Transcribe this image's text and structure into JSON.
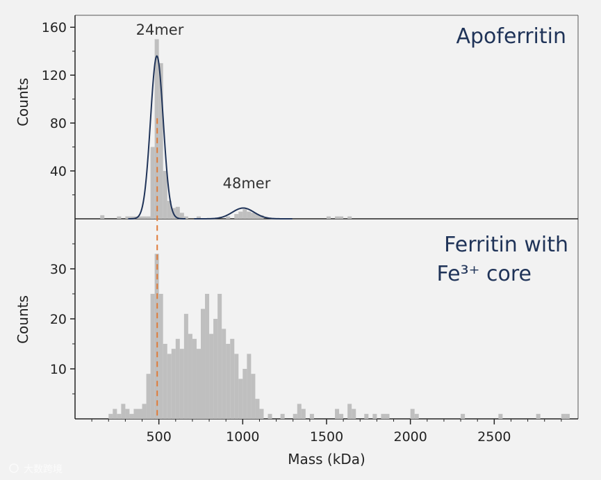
{
  "chart_data": [
    {
      "type": "bar",
      "panel": "top",
      "title": "Apoferritin",
      "ylabel": "Counts",
      "xlabel": "",
      "xlim": [
        0,
        3000
      ],
      "ylim": [
        0,
        170
      ],
      "bin_width": 25,
      "yticks": [
        "40",
        "80",
        "120",
        "160"
      ],
      "ytick_values": [
        40,
        80,
        120,
        160
      ],
      "annotations": [
        {
          "text": "24mer",
          "x": 500,
          "y": 158
        },
        {
          "text": "48mer",
          "x": 1000,
          "y": 28
        }
      ],
      "reference_line": {
        "x": 490,
        "style": "dashed",
        "color": "#e07b39"
      },
      "bins": [
        {
          "x": 150,
          "y": 3
        },
        {
          "x": 250,
          "y": 2
        },
        {
          "x": 300,
          "y": 2
        },
        {
          "x": 325,
          "y": 2
        },
        {
          "x": 350,
          "y": 2
        },
        {
          "x": 375,
          "y": 2
        },
        {
          "x": 400,
          "y": 2
        },
        {
          "x": 425,
          "y": 2
        },
        {
          "x": 450,
          "y": 60
        },
        {
          "x": 475,
          "y": 150
        },
        {
          "x": 500,
          "y": 130
        },
        {
          "x": 525,
          "y": 40
        },
        {
          "x": 550,
          "y": 15
        },
        {
          "x": 575,
          "y": 9
        },
        {
          "x": 600,
          "y": 10
        },
        {
          "x": 625,
          "y": 5
        },
        {
          "x": 650,
          "y": 2
        },
        {
          "x": 725,
          "y": 2
        },
        {
          "x": 900,
          "y": 2
        },
        {
          "x": 950,
          "y": 4
        },
        {
          "x": 975,
          "y": 6
        },
        {
          "x": 1000,
          "y": 8
        },
        {
          "x": 1025,
          "y": 6
        },
        {
          "x": 1050,
          "y": 5
        },
        {
          "x": 1075,
          "y": 4
        },
        {
          "x": 1100,
          "y": 3
        },
        {
          "x": 1500,
          "y": 2
        },
        {
          "x": 1550,
          "y": 2
        },
        {
          "x": 1575,
          "y": 2
        },
        {
          "x": 1625,
          "y": 2
        }
      ],
      "fit_curves": [
        {
          "mean": 488,
          "sd": 38,
          "amplitude": 136,
          "color": "#1f3358"
        },
        {
          "mean": 1003,
          "sd": 65,
          "amplitude": 9,
          "color": "#1f3358"
        }
      ]
    },
    {
      "type": "bar",
      "panel": "bottom",
      "title": "Ferritin with Fe³⁺ core",
      "title_lines": [
        "Ferritin with",
        "Fe³⁺ core"
      ],
      "ylabel": "Counts",
      "xlabel": "Mass (kDa)",
      "xlim": [
        0,
        3000
      ],
      "ylim": [
        0,
        40
      ],
      "bin_width": 25,
      "xticks": [
        "500",
        "1000",
        "1500",
        "2000",
        "2500"
      ],
      "xtick_values": [
        500,
        1000,
        1500,
        2000,
        2500
      ],
      "yticks": [
        "10",
        "20",
        "30"
      ],
      "ytick_values": [
        10,
        20,
        30
      ],
      "reference_line": {
        "x": 490,
        "style": "dashed",
        "color": "#e07b39"
      },
      "bins": [
        {
          "x": 200,
          "y": 1
        },
        {
          "x": 225,
          "y": 2
        },
        {
          "x": 250,
          "y": 1
        },
        {
          "x": 275,
          "y": 3
        },
        {
          "x": 300,
          "y": 2
        },
        {
          "x": 325,
          "y": 1
        },
        {
          "x": 350,
          "y": 2
        },
        {
          "x": 375,
          "y": 2
        },
        {
          "x": 400,
          "y": 3
        },
        {
          "x": 425,
          "y": 9
        },
        {
          "x": 450,
          "y": 25
        },
        {
          "x": 475,
          "y": 33
        },
        {
          "x": 500,
          "y": 25
        },
        {
          "x": 525,
          "y": 15
        },
        {
          "x": 550,
          "y": 13
        },
        {
          "x": 575,
          "y": 14
        },
        {
          "x": 600,
          "y": 16
        },
        {
          "x": 625,
          "y": 14
        },
        {
          "x": 650,
          "y": 21
        },
        {
          "x": 675,
          "y": 17
        },
        {
          "x": 700,
          "y": 16
        },
        {
          "x": 725,
          "y": 14
        },
        {
          "x": 750,
          "y": 22
        },
        {
          "x": 775,
          "y": 25
        },
        {
          "x": 800,
          "y": 17
        },
        {
          "x": 825,
          "y": 20
        },
        {
          "x": 850,
          "y": 25
        },
        {
          "x": 875,
          "y": 18
        },
        {
          "x": 900,
          "y": 15
        },
        {
          "x": 925,
          "y": 16
        },
        {
          "x": 950,
          "y": 13
        },
        {
          "x": 975,
          "y": 8
        },
        {
          "x": 1000,
          "y": 10
        },
        {
          "x": 1025,
          "y": 13
        },
        {
          "x": 1050,
          "y": 9
        },
        {
          "x": 1075,
          "y": 4
        },
        {
          "x": 1100,
          "y": 2
        },
        {
          "x": 1150,
          "y": 1
        },
        {
          "x": 1225,
          "y": 1
        },
        {
          "x": 1300,
          "y": 1
        },
        {
          "x": 1325,
          "y": 3
        },
        {
          "x": 1350,
          "y": 2
        },
        {
          "x": 1400,
          "y": 1
        },
        {
          "x": 1550,
          "y": 2
        },
        {
          "x": 1575,
          "y": 1
        },
        {
          "x": 1625,
          "y": 3
        },
        {
          "x": 1650,
          "y": 2
        },
        {
          "x": 1725,
          "y": 1
        },
        {
          "x": 1775,
          "y": 1
        },
        {
          "x": 1825,
          "y": 1
        },
        {
          "x": 1850,
          "y": 1
        },
        {
          "x": 2000,
          "y": 2
        },
        {
          "x": 2025,
          "y": 1
        },
        {
          "x": 2300,
          "y": 1
        },
        {
          "x": 2525,
          "y": 1
        },
        {
          "x": 2750,
          "y": 1
        },
        {
          "x": 2900,
          "y": 1
        },
        {
          "x": 2925,
          "y": 1
        }
      ]
    }
  ],
  "watermark": "大数跨境"
}
